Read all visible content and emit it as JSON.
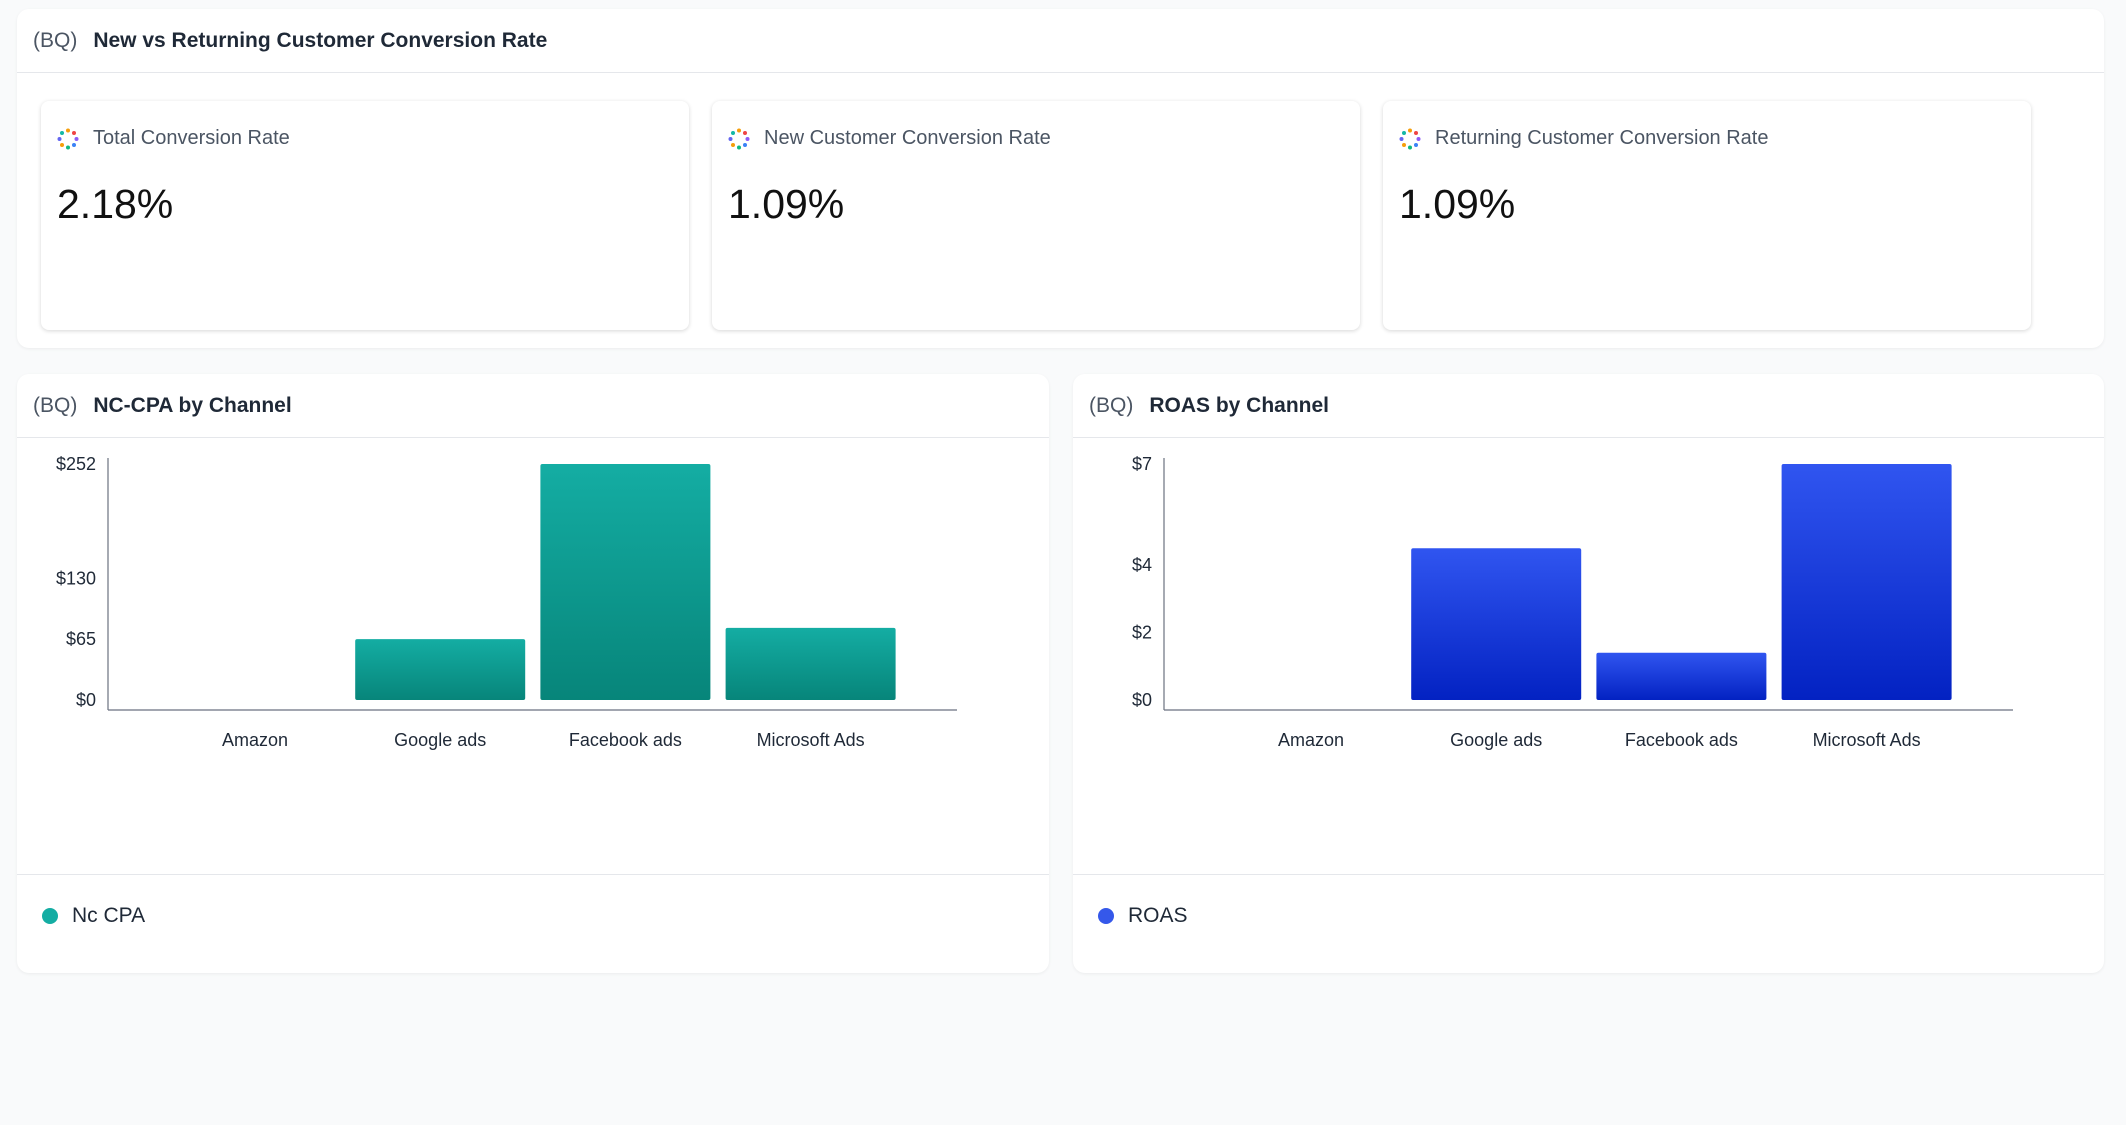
{
  "conversion": {
    "source": "(BQ)",
    "title": "New vs Returning Customer Conversion Rate",
    "kpis": [
      {
        "label": "Total Conversion Rate",
        "value": "2.18%"
      },
      {
        "label": "New Customer Conversion Rate",
        "value": "1.09%"
      },
      {
        "label": "Returning Customer Conversion Rate",
        "value": "1.09%"
      }
    ]
  },
  "chart_data": [
    {
      "type": "bar",
      "source": "(BQ)",
      "title": "NC-CPA by Channel",
      "categories": [
        "Amazon",
        "Google ads",
        "Facebook ads",
        "Microsoft Ads"
      ],
      "values": [
        0,
        65,
        252,
        77
      ],
      "yticks": [
        0,
        65,
        130,
        252
      ],
      "ytick_labels": [
        "$0",
        "$65",
        "$130",
        "$252"
      ],
      "ylim": [
        0,
        252
      ],
      "series": [
        {
          "name": "Nc CPA",
          "values": [
            0,
            65,
            252,
            77
          ]
        }
      ],
      "color_top": "#14ada3",
      "color_bottom": "#07857a",
      "legend_color": "#14ada3",
      "legend_position": "bottom-left",
      "grid": false
    },
    {
      "type": "bar",
      "source": "(BQ)",
      "title": "ROAS by Channel",
      "categories": [
        "Amazon",
        "Google ads",
        "Facebook ads",
        "Microsoft Ads"
      ],
      "values": [
        0,
        4.5,
        1.4,
        7
      ],
      "yticks": [
        0,
        2,
        4,
        7
      ],
      "ytick_labels": [
        "$0",
        "$2",
        "$4",
        "$7"
      ],
      "ylim": [
        0,
        7
      ],
      "series": [
        {
          "name": "ROAS",
          "values": [
            0,
            4.5,
            1.4,
            7
          ]
        }
      ],
      "color_top": "#3055f0",
      "color_bottom": "#0322c2",
      "legend_color": "#3558ea",
      "legend_position": "bottom-left",
      "grid": false
    }
  ]
}
